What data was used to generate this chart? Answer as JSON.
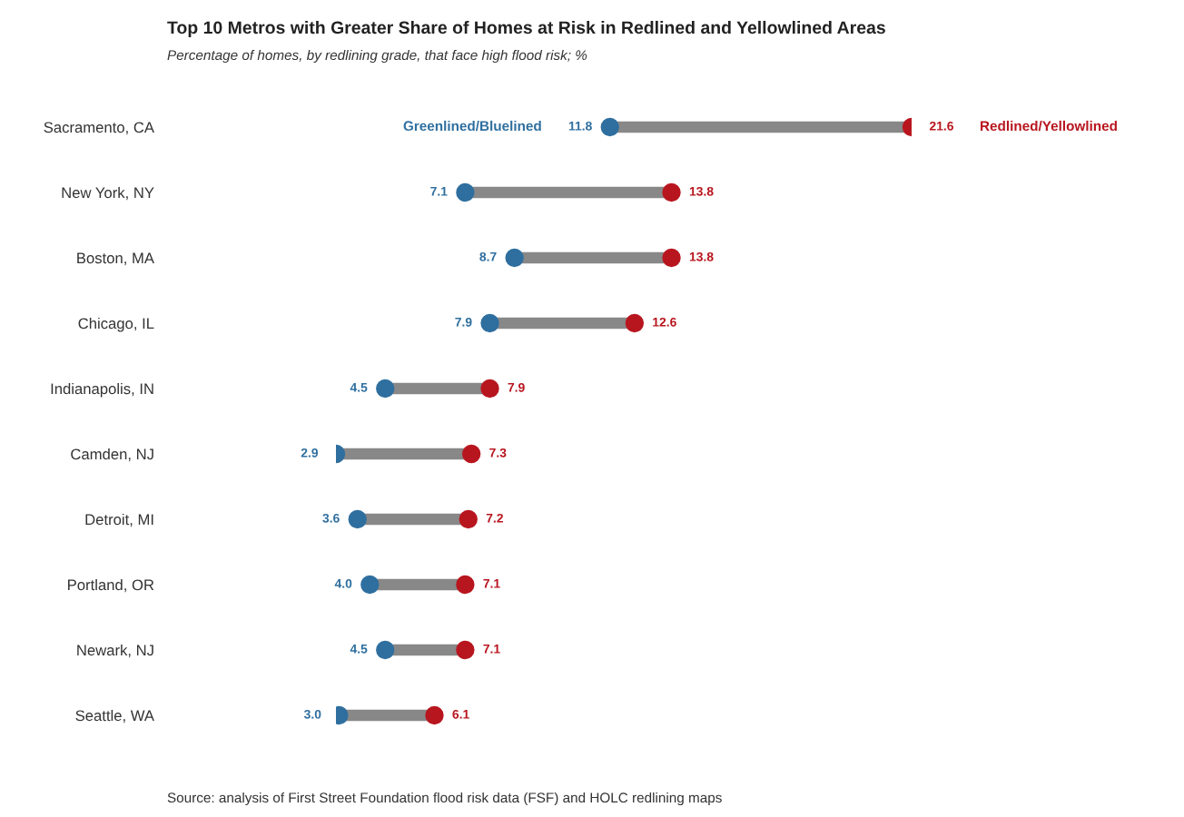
{
  "chart_data": {
    "type": "scatter",
    "orientation": "horizontal",
    "title": "Top 10 Metros with Greater Share of Homes at Risk in Redlined and Yellowlined Areas",
    "subtitle": "Percentage of homes, by redlining grade, that face high flood risk; %",
    "categories": [
      "Sacramento, CA",
      "New York, NY",
      "Boston, MA",
      "Chicago, IL",
      "Indianapolis, IN",
      "Camden, NJ",
      "Detroit, MI",
      "Portland, OR",
      "Newark, NJ",
      "Seattle, WA"
    ],
    "series": [
      {
        "name": "Greenlined/Bluelined",
        "color": "#2f6f9f",
        "values": [
          11.8,
          7.1,
          8.7,
          7.9,
          4.5,
          2.9,
          3.6,
          4.0,
          4.5,
          3.0
        ],
        "value_labels": [
          "11.8",
          "7.1",
          "8.7",
          "7.9",
          "4.5",
          "2.9",
          "3.6",
          "4.0",
          "4.5",
          "3.0"
        ]
      },
      {
        "name": "Redlined/Yellowlined",
        "color": "#b8161f",
        "values": [
          21.6,
          13.8,
          13.8,
          12.6,
          7.9,
          7.3,
          7.2,
          7.1,
          7.1,
          6.1
        ],
        "value_labels": [
          "21.6",
          "13.8",
          "13.8",
          "12.6",
          "7.9",
          "7.3",
          "7.2",
          "7.1",
          "7.1",
          "6.1"
        ]
      }
    ],
    "legend": false,
    "grid": false,
    "marker": "circle",
    "annotations": [
      "Source: analysis of First Street Foundation flood risk data (FSF) and HOLC redlining maps"
    ]
  }
}
